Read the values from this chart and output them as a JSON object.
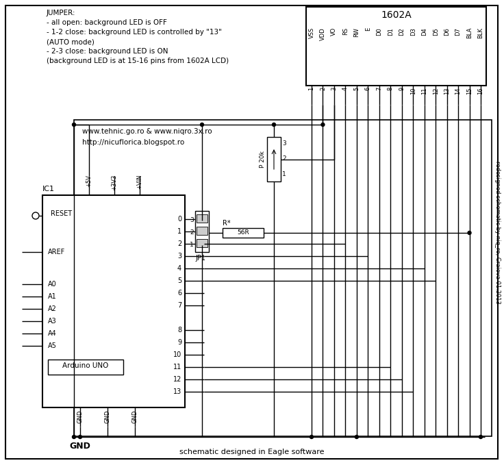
{
  "line_color": "#000000",
  "title_1602": "1602A",
  "lcd_pins": [
    "VSS",
    "VDD",
    "VO",
    "RS",
    "RW",
    "E",
    "D0",
    "D1",
    "D2",
    "D3",
    "D4",
    "D5",
    "D6",
    "D7",
    "BLA",
    "BLK"
  ],
  "lcd_pin_nums": [
    "1",
    "2",
    "3",
    "4",
    "5",
    "6",
    "7",
    "8",
    "9",
    "10",
    "11",
    "12",
    "13",
    "14",
    "15",
    "16"
  ],
  "arduino_top_labels": [
    "+5V",
    "+3V3",
    "+VIN"
  ],
  "arduino_label": "Arduino UNO",
  "ic1_label": "IC1",
  "gnd_label": "GND",
  "jumper_text_lines": [
    "JUMPER:",
    "- all open: background LED is OFF",
    "- 1-2 close: background LED is controlled by \"13\"",
    "(AUTO mode)",
    "- 2-3 close: background LED is ON",
    "(background LED is at 15-16 pins from 1602A LCD)"
  ],
  "url1": "www.tehnic.go.ro & www.niqro.3x.ro",
  "url2": "http://nicuflorica.blogspot.ro",
  "bottom_text": "schematic designed in Eagle software",
  "side_text": "redesigned schematic by niq_ro, Craiova 01.2013",
  "jp1_label": "JP1",
  "r_label": "R*",
  "r_value": "56R",
  "pot_label": "P 20k"
}
